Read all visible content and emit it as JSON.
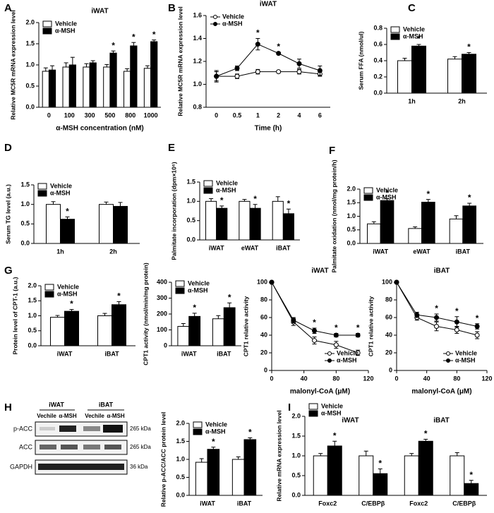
{
  "chart_data": [
    {
      "type": "bar",
      "panel": "A",
      "title": "iWAT",
      "ylabel": "Relative MC5R mRNA expression level",
      "xlabel": "α-MSH concentration (nM)",
      "categories": [
        "0",
        "100",
        "300",
        "500",
        "800",
        "1000"
      ],
      "ylim": [
        0,
        2
      ],
      "yticks": [
        {
          "value": 0,
          "label": "0.0"
        },
        0.5,
        {
          "value": 1,
          "label": "1.0"
        },
        1.5,
        {
          "value": 2,
          "label": "2.0"
        }
      ],
      "legend": "upper left",
      "series": [
        {
          "name": "Vehicle",
          "color": "#ffffff",
          "values": [
            0.85,
            0.95,
            0.95,
            0.95,
            0.85,
            0.92
          ],
          "errors": [
            0.08,
            0.1,
            0.08,
            0.06,
            0.06,
            0.06
          ],
          "significance": [
            null,
            null,
            null,
            null,
            null,
            null
          ]
        },
        {
          "name": "α-MSH",
          "color": "#000000",
          "values": [
            0.88,
            1.0,
            1.05,
            1.28,
            1.45,
            1.55
          ],
          "errors": [
            0.1,
            0.18,
            0.05,
            0.05,
            0.08,
            0.04
          ],
          "significance": [
            null,
            null,
            null,
            "*",
            "*",
            "*"
          ]
        }
      ]
    },
    {
      "type": "line",
      "panel": "B",
      "title": "iWAT",
      "ylabel": "Relative MC5R mRNA expression level",
      "xlabel": "Time (h)",
      "categories": [
        "0",
        "0.5",
        "1",
        "2",
        "4",
        "6"
      ],
      "ylim": [
        0.8,
        1.6
      ],
      "yticks": [
        0.8,
        {
          "value": 1,
          "label": "1.0"
        },
        1.2,
        1.4,
        1.6
      ],
      "legend": "upper left",
      "series": [
        {
          "name": "Vehicle",
          "color": "#ffffff",
          "values": [
            1.07,
            1.07,
            1.11,
            1.11,
            1.11,
            1.09
          ],
          "errors": [
            0.04,
            0.02,
            0.02,
            0.01,
            0.02,
            0.02
          ],
          "significance": [
            null,
            null,
            null,
            null,
            null,
            null
          ]
        },
        {
          "name": "α-MSH",
          "color": "#000000",
          "values": [
            1.07,
            1.14,
            1.35,
            1.27,
            1.18,
            1.12
          ],
          "errors": [
            0.05,
            0.02,
            0.05,
            0.01,
            0.04,
            0.04
          ],
          "significance": [
            null,
            null,
            "*",
            "*",
            null,
            null
          ]
        }
      ]
    },
    {
      "type": "bar",
      "panel": "C",
      "ylabel": "Serum FFA (nmol/ul)",
      "categories": [
        "1h",
        "2h"
      ],
      "ylim": [
        0,
        0.8
      ],
      "yticks": [
        {
          "value": 0,
          "label": "0.0"
        },
        0.2,
        0.4,
        0.6,
        0.8
      ],
      "legend": "upper left",
      "series": [
        {
          "name": "Vehicle",
          "color": "#ffffff",
          "values": [
            0.4,
            0.42
          ],
          "errors": [
            0.03,
            0.03
          ],
          "significance": [
            null,
            null
          ]
        },
        {
          "name": "α-MSH",
          "color": "#000000",
          "values": [
            0.58,
            0.48
          ],
          "errors": [
            0.02,
            0.02
          ],
          "significance": [
            "*",
            "*"
          ]
        }
      ]
    },
    {
      "type": "bar",
      "panel": "D",
      "ylabel": "Serum TG level (a.u.)",
      "categories": [
        "1h",
        "2h"
      ],
      "ylim": [
        0,
        1.5
      ],
      "yticks": [
        {
          "value": 0,
          "label": "0.0"
        },
        0.5,
        {
          "value": 1,
          "label": "1.0"
        },
        1.5
      ],
      "legend": "upper left",
      "series": [
        {
          "name": "Vehicle",
          "color": "#ffffff",
          "values": [
            1.0,
            1.0
          ],
          "errors": [
            0.07,
            0.06
          ],
          "significance": [
            null,
            null
          ]
        },
        {
          "name": "α-MSH",
          "color": "#000000",
          "values": [
            0.62,
            0.95
          ],
          "errors": [
            0.06,
            0.1
          ],
          "significance": [
            "*",
            null
          ]
        }
      ]
    },
    {
      "type": "bar",
      "panel": "E",
      "ylabel": "Palmitate incorporation (dpm×10⁶)",
      "categories": [
        "iWAT",
        "eWAT",
        "iBAT"
      ],
      "ylim": [
        0,
        1.5
      ],
      "yticks": [
        {
          "value": 0,
          "label": "0.0"
        },
        0.5,
        {
          "value": 1,
          "label": "1.0"
        },
        1.5
      ],
      "legend": "upper left",
      "series": [
        {
          "name": "Vehicle",
          "color": "#ffffff",
          "values": [
            1.0,
            1.0,
            1.0
          ],
          "errors": [
            0.07,
            0.05,
            0.12
          ],
          "significance": [
            null,
            null,
            null
          ]
        },
        {
          "name": "α-MSH",
          "color": "#000000",
          "values": [
            0.82,
            0.82,
            0.68
          ],
          "errors": [
            0.06,
            0.1,
            0.12
          ],
          "significance": [
            "*",
            "*",
            "*"
          ]
        }
      ]
    },
    {
      "type": "bar",
      "panel": "F",
      "ylabel": "Palmitate oxidation (nmol/mg protein/h)",
      "categories": [
        "iWAT",
        "eWAT",
        "iBAT"
      ],
      "ylim": [
        0,
        2
      ],
      "yticks": [
        {
          "value": 0,
          "label": "0.0"
        },
        0.5,
        {
          "value": 1,
          "label": "1.0"
        },
        1.5,
        {
          "value": 2,
          "label": "2.0"
        }
      ],
      "legend": "upper left",
      "series": [
        {
          "name": "Vehicle",
          "color": "#ffffff",
          "values": [
            0.72,
            0.55,
            0.9
          ],
          "errors": [
            0.08,
            0.06,
            0.12
          ],
          "significance": [
            null,
            null,
            null
          ]
        },
        {
          "name": "α-MSH",
          "color": "#000000",
          "values": [
            1.58,
            1.52,
            1.38
          ],
          "errors": [
            0.07,
            0.1,
            0.1
          ],
          "significance": [
            "*",
            "*",
            "*"
          ]
        }
      ]
    },
    {
      "type": "bar",
      "panel": "G",
      "ylabel": "Protein level of CPT-1 (a.u.)",
      "categories": [
        "iWAT",
        "iBAT"
      ],
      "ylim": [
        0,
        2
      ],
      "yticks": [
        {
          "value": 0,
          "label": "0.0"
        },
        0.5,
        {
          "value": 1,
          "label": "1.0"
        },
        1.5,
        {
          "value": 2,
          "label": "2.0"
        }
      ],
      "legend": "upper left",
      "series": [
        {
          "name": "Vehicle",
          "color": "#ffffff",
          "values": [
            0.95,
            1.0
          ],
          "errors": [
            0.06,
            0.08
          ],
          "significance": [
            null,
            null
          ]
        },
        {
          "name": "α-MSH",
          "color": "#000000",
          "values": [
            1.15,
            1.37
          ],
          "errors": [
            0.06,
            0.1
          ],
          "significance": [
            "*",
            "*"
          ]
        }
      ]
    },
    {
      "type": "bar",
      "ylabel": "CPT1 activity (nmol/min/mg protein)",
      "categories": [
        "iWAT",
        "iBAT"
      ],
      "ylim": [
        0,
        400
      ],
      "yticks": [
        0,
        100,
        200,
        300,
        400
      ],
      "legend": "upper left",
      "series": [
        {
          "name": "Vehicle",
          "color": "#ffffff",
          "values": [
            122,
            170
          ],
          "errors": [
            18,
            20
          ],
          "significance": [
            null,
            null
          ]
        },
        {
          "name": "α-MSH",
          "color": "#000000",
          "values": [
            185,
            240
          ],
          "errors": [
            20,
            30
          ],
          "significance": [
            "*",
            "*"
          ]
        }
      ]
    },
    {
      "type": "line",
      "title": "iWAT",
      "ylabel": "CPT1 relative activity",
      "xlabel": "malonyl-CoA (μM)",
      "x": [
        0,
        27,
        53,
        80,
        107
      ],
      "xlim": [
        0,
        120
      ],
      "xticks": [
        0,
        40,
        80,
        120
      ],
      "ylim": [
        0,
        100
      ],
      "yticks": [
        0,
        20,
        40,
        60,
        80,
        100
      ],
      "legend": "lower right",
      "series": [
        {
          "name": "Vehicle",
          "color": "#ffffff",
          "values": [
            100,
            55,
            34,
            29,
            20
          ],
          "errors": [
            null,
            4,
            4,
            4,
            3
          ],
          "significance": [
            null,
            null,
            null,
            null,
            null
          ]
        },
        {
          "name": "α-MSH",
          "color": "#000000",
          "values": [
            100,
            57,
            45,
            40,
            40
          ],
          "errors": [
            null,
            3,
            3,
            2,
            2
          ],
          "significance": [
            null,
            null,
            "*",
            "*",
            "*"
          ]
        }
      ]
    },
    {
      "type": "line",
      "title": "iBAT",
      "ylabel": "CPT1 relative activity",
      "xlabel": "malonyl-CoA (μM)",
      "x": [
        0,
        27,
        53,
        80,
        107
      ],
      "xlim": [
        0,
        120
      ],
      "xticks": [
        0,
        40,
        80,
        120
      ],
      "ylim": [
        0,
        100
      ],
      "yticks": [
        0,
        20,
        40,
        60,
        80,
        100
      ],
      "legend": "lower right",
      "series": [
        {
          "name": "Vehicle",
          "color": "#ffffff",
          "values": [
            100,
            60,
            50,
            46,
            40
          ],
          "errors": [
            null,
            3,
            5,
            4,
            4
          ],
          "significance": [
            null,
            null,
            null,
            null,
            null
          ]
        },
        {
          "name": "α-MSH",
          "color": "#000000",
          "values": [
            100,
            63,
            60,
            55,
            50
          ],
          "errors": [
            null,
            3,
            4,
            6,
            3
          ],
          "significance": [
            null,
            null,
            "*",
            "*",
            "*"
          ]
        }
      ]
    },
    {
      "type": "bar",
      "ylabel": "Relative p-ACC/ACC protein level",
      "categories": [
        "iWAT",
        "iBAT"
      ],
      "ylim": [
        0,
        2
      ],
      "yticks": [
        {
          "value": 0,
          "label": "0.0"
        },
        0.5,
        {
          "value": 1,
          "label": "1.0"
        },
        1.5,
        {
          "value": 2,
          "label": "2.0"
        }
      ],
      "legend": "upper left",
      "series": [
        {
          "name": "Vehicle",
          "color": "#ffffff",
          "values": [
            0.92,
            1.0
          ],
          "errors": [
            0.1,
            0.07
          ],
          "significance": [
            null,
            null
          ]
        },
        {
          "name": "α-MSH",
          "color": "#000000",
          "values": [
            1.28,
            1.55
          ],
          "errors": [
            0.06,
            0.05
          ],
          "significance": [
            "*",
            "*"
          ]
        }
      ]
    },
    {
      "type": "bar",
      "panel": "I",
      "ylabel": "Relative mRNA expression level",
      "categories": [
        "Foxc2",
        "C/EBPβ",
        "Foxc2",
        "C/EBPβ"
      ],
      "groups": [
        "iWAT",
        "iBAT"
      ],
      "ylim": [
        0,
        2
      ],
      "yticks": [
        {
          "value": 0,
          "label": "0.0"
        },
        0.5,
        {
          "value": 1,
          "label": "1.0"
        },
        1.5,
        {
          "value": 2,
          "label": "2.0"
        }
      ],
      "legend": "upper left",
      "series": [
        {
          "name": "Vehicle",
          "color": "#ffffff",
          "values": [
            1.0,
            1.0,
            1.0,
            1.0
          ],
          "errors": [
            0.06,
            0.12,
            0.06,
            0.08
          ],
          "significance": [
            null,
            null,
            null,
            null
          ]
        },
        {
          "name": "α-MSH",
          "color": "#000000",
          "values": [
            1.25,
            0.55,
            1.37,
            0.3
          ],
          "errors": [
            0.12,
            0.12,
            0.05,
            0.08
          ],
          "significance": [
            "*",
            "*",
            "*",
            "*"
          ]
        }
      ]
    }
  ],
  "blot": {
    "panel": "H",
    "groups": [
      "iWAT",
      "iBAT"
    ],
    "lanes": [
      "Vechile",
      "α-MSH",
      "Vechile",
      "α-MSH"
    ],
    "rows": [
      {
        "name": "p-ACC",
        "size": "265 kDa"
      },
      {
        "name": "ACC",
        "size": "265 kDa"
      },
      {
        "name": "GAPDH",
        "size": "36 kDa"
      }
    ]
  }
}
